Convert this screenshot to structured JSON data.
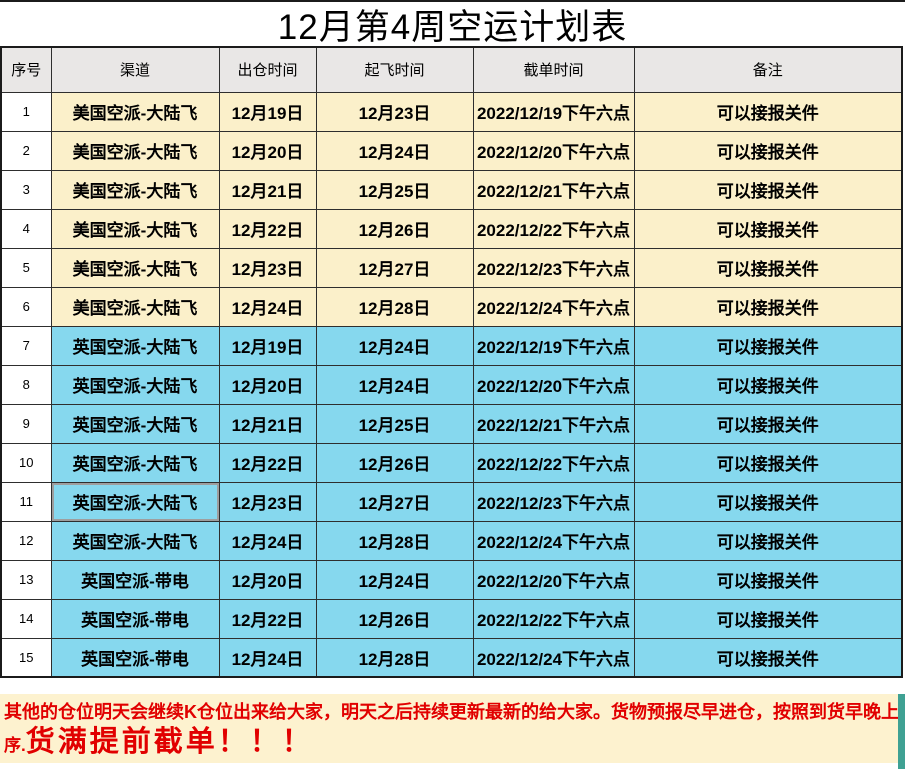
{
  "title": "12月第4周空运计划表",
  "table": {
    "headers": {
      "no": "序号",
      "channel": "渠道",
      "out_time": "出仓时间",
      "fly_time": "起飞时间",
      "cutoff_time": "截单时间",
      "note": "备注"
    },
    "selected_row": 11,
    "rows": [
      {
        "no": "1",
        "channel": "美国空派-大陆飞",
        "out_time": "12月19日",
        "fly_time": "12月23日",
        "cutoff_time": "2022/12/19下午六点",
        "note": "可以接报关件",
        "group": "us"
      },
      {
        "no": "2",
        "channel": "美国空派-大陆飞",
        "out_time": "12月20日",
        "fly_time": "12月24日",
        "cutoff_time": "2022/12/20下午六点",
        "note": "可以接报关件",
        "group": "us"
      },
      {
        "no": "3",
        "channel": "美国空派-大陆飞",
        "out_time": "12月21日",
        "fly_time": "12月25日",
        "cutoff_time": "2022/12/21下午六点",
        "note": "可以接报关件",
        "group": "us"
      },
      {
        "no": "4",
        "channel": "美国空派-大陆飞",
        "out_time": "12月22日",
        "fly_time": "12月26日",
        "cutoff_time": "2022/12/22下午六点",
        "note": "可以接报关件",
        "group": "us"
      },
      {
        "no": "5",
        "channel": "美国空派-大陆飞",
        "out_time": "12月23日",
        "fly_time": "12月27日",
        "cutoff_time": "2022/12/23下午六点",
        "note": "可以接报关件",
        "group": "us"
      },
      {
        "no": "6",
        "channel": "美国空派-大陆飞",
        "out_time": "12月24日",
        "fly_time": "12月28日",
        "cutoff_time": "2022/12/24下午六点",
        "note": "可以接报关件",
        "group": "us"
      },
      {
        "no": "7",
        "channel": "英国空派-大陆飞",
        "out_time": "12月19日",
        "fly_time": "12月24日",
        "cutoff_time": "2022/12/19下午六点",
        "note": "可以接报关件",
        "group": "uk"
      },
      {
        "no": "8",
        "channel": "英国空派-大陆飞",
        "out_time": "12月20日",
        "fly_time": "12月24日",
        "cutoff_time": "2022/12/20下午六点",
        "note": "可以接报关件",
        "group": "uk"
      },
      {
        "no": "9",
        "channel": "英国空派-大陆飞",
        "out_time": "12月21日",
        "fly_time": "12月25日",
        "cutoff_time": "2022/12/21下午六点",
        "note": "可以接报关件",
        "group": "uk"
      },
      {
        "no": "10",
        "channel": "英国空派-大陆飞",
        "out_time": "12月22日",
        "fly_time": "12月26日",
        "cutoff_time": "2022/12/22下午六点",
        "note": "可以接报关件",
        "group": "uk"
      },
      {
        "no": "11",
        "channel": "英国空派-大陆飞",
        "out_time": "12月23日",
        "fly_time": "12月27日",
        "cutoff_time": "2022/12/23下午六点",
        "note": "可以接报关件",
        "group": "uk"
      },
      {
        "no": "12",
        "channel": "英国空派-大陆飞",
        "out_time": "12月24日",
        "fly_time": "12月28日",
        "cutoff_time": "2022/12/24下午六点",
        "note": "可以接报关件",
        "group": "uk"
      },
      {
        "no": "13",
        "channel": "英国空派-带电",
        "out_time": "12月20日",
        "fly_time": "12月24日",
        "cutoff_time": "2022/12/20下午六点",
        "note": "可以接报关件",
        "group": "uk"
      },
      {
        "no": "14",
        "channel": "英国空派-带电",
        "out_time": "12月22日",
        "fly_time": "12月26日",
        "cutoff_time": "2022/12/22下午六点",
        "note": "可以接报关件",
        "group": "uk"
      },
      {
        "no": "15",
        "channel": "英国空派-带电",
        "out_time": "12月24日",
        "fly_time": "12月28日",
        "cutoff_time": "2022/12/24下午六点",
        "note": "可以接报关件",
        "group": "uk"
      }
    ]
  },
  "footer": {
    "notice_line1": "其他的仓位明天会继续K仓位出来给大家，明天之后持续更新最新的给大家。货物预报尽早进仓，按照到货早晚上航班顺",
    "notice_line2_prefix": "序.",
    "notice_line2_highlight": "货满提前截单！！！"
  },
  "colors": {
    "header_bg": "#e9e7e6",
    "us_row_bg": "#fbf0ca",
    "uk_row_bg": "#86d8ee",
    "footer_bg": "#fdf2cf",
    "notice_text": "#e10000",
    "right_strip": "#3fa193"
  }
}
